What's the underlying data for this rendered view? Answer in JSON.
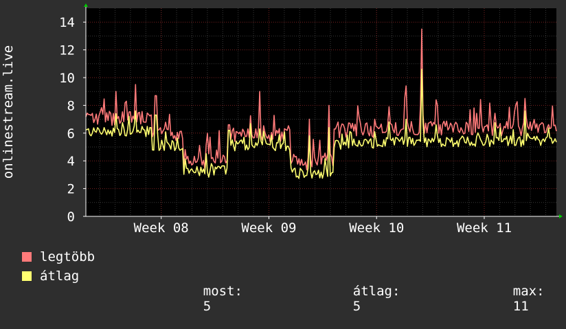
{
  "colors": {
    "background": "#2e2e2e",
    "plot_area": "#000000",
    "grid_minor": "#3a3a3a",
    "grid_major": "#7a2020",
    "axis": "#ffffff",
    "arrow": "#00cc00",
    "max_series": "#ff7a7a",
    "avg_series": "#ffff70"
  },
  "chart_data": {
    "type": "area",
    "ylabel": "onlinestream.live",
    "ylim": [
      0,
      15
    ],
    "yticks": [
      0,
      2,
      4,
      6,
      8,
      10,
      12,
      14
    ],
    "grid": true,
    "x_range_weeks": [
      7.3,
      11.67
    ],
    "xticks": [
      {
        "label": "Week 08",
        "week": 8
      },
      {
        "label": "Week 09",
        "week": 9
      },
      {
        "label": "Week 10",
        "week": 10
      },
      {
        "label": "Week 11",
        "week": 11
      }
    ],
    "segments": [
      {
        "from": 7.3,
        "to": 7.91,
        "max_base": 6.8,
        "avg_base": 6.0
      },
      {
        "from": 7.91,
        "to": 8.2,
        "max_base": 5.7,
        "avg_base": 5.0
      },
      {
        "from": 8.2,
        "to": 8.48,
        "max_base": 3.6,
        "avg_base": 3.1
      },
      {
        "from": 8.48,
        "to": 8.62,
        "max_base": 3.8,
        "avg_base": 3.2
      },
      {
        "from": 8.62,
        "to": 9.04,
        "max_base": 5.6,
        "avg_base": 5.0
      },
      {
        "from": 9.04,
        "to": 9.2,
        "max_base": 5.6,
        "avg_base": 5.0
      },
      {
        "from": 9.2,
        "to": 9.5,
        "max_base": 3.6,
        "avg_base": 3.0
      },
      {
        "from": 9.5,
        "to": 9.6,
        "max_base": 3.9,
        "avg_base": 3.0
      },
      {
        "from": 9.6,
        "to": 10.0,
        "max_base": 6.0,
        "avg_base": 5.1
      },
      {
        "from": 10.0,
        "to": 11.67,
        "max_base": 6.1,
        "avg_base": 5.3
      }
    ],
    "peaks": [
      {
        "week": 7.58,
        "max": 9.0,
        "avg": 7.4
      },
      {
        "week": 7.76,
        "max": 9.5,
        "avg": 7.6
      },
      {
        "week": 7.95,
        "max": 8.7,
        "avg": 7.3
      },
      {
        "week": 8.63,
        "max": 6.6,
        "avg": 6.2
      },
      {
        "week": 8.91,
        "max": 9.0,
        "avg": 6.3
      },
      {
        "week": 9.38,
        "max": 7.0,
        "avg": 5.8
      },
      {
        "week": 9.56,
        "max": 8.0,
        "avg": 6.4
      },
      {
        "week": 9.98,
        "max": 7.0,
        "avg": 6.1
      },
      {
        "week": 10.12,
        "max": 7.9,
        "avg": 6.8
      },
      {
        "week": 10.27,
        "max": 9.4,
        "avg": 7.0
      },
      {
        "week": 10.42,
        "max": 13.5,
        "avg": 10.6
      },
      {
        "week": 10.55,
        "max": 8.4,
        "avg": 6.6
      },
      {
        "week": 11.38,
        "max": 8.5,
        "avg": 7.6
      }
    ],
    "series": [
      {
        "name": "legtöbb",
        "color": "#ff7a7a"
      },
      {
        "name": "átlag",
        "color": "#ffff70"
      }
    ]
  },
  "legend": {
    "items": [
      {
        "label": "legtöbb",
        "color": "#ff7a7a"
      },
      {
        "label": "átlag",
        "color": "#ffff70"
      }
    ],
    "stats": {
      "most_label": "most:",
      "most_value": "5",
      "atlag_label": "átlag:",
      "atlag_value": "5",
      "max_label": "max:",
      "max_value": "11"
    }
  }
}
